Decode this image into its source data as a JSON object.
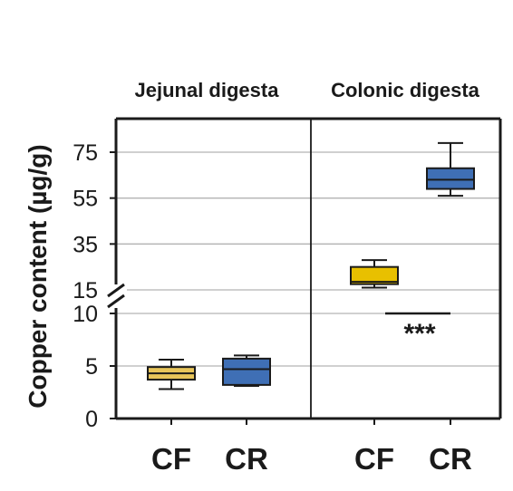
{
  "chart_data": {
    "type": "box",
    "ylabel": "Copper content (µg/g)",
    "panels": [
      "Jejunal digesta",
      "Colonic digesta"
    ],
    "categories": [
      "CF",
      "CR"
    ],
    "y_axis": {
      "broken": true,
      "lower_segment": [
        0,
        10
      ],
      "upper_segment": [
        15,
        75
      ],
      "lower_ticks": [
        "0",
        "5",
        "10"
      ],
      "upper_ticks": [
        "15",
        "35",
        "55",
        "75"
      ],
      "grid": true
    },
    "series": [
      {
        "panel": "Jejunal digesta",
        "group": "CF",
        "color": "#E8C55A",
        "min": 2.8,
        "q1": 3.7,
        "median": 4.3,
        "q3": 4.9,
        "max": 5.6
      },
      {
        "panel": "Jejunal digesta",
        "group": "CR",
        "color": "#3F6FB5",
        "min": 3.1,
        "q1": 3.2,
        "median": 4.7,
        "q3": 5.7,
        "max": 6.0
      },
      {
        "panel": "Colonic digesta",
        "group": "CF",
        "color": "#E8C000",
        "min": 16.0,
        "q1": 17.5,
        "median": 18.5,
        "q3": 25.0,
        "max": 28.0
      },
      {
        "panel": "Colonic digesta",
        "group": "CR",
        "color": "#3F6FB5",
        "min": 56.0,
        "q1": 59.0,
        "median": 63.0,
        "q3": 68.0,
        "max": 79.0
      }
    ],
    "annotations": [
      {
        "panel": "Colonic digesta",
        "text": "***",
        "between": [
          "CF",
          "CR"
        ]
      }
    ]
  }
}
